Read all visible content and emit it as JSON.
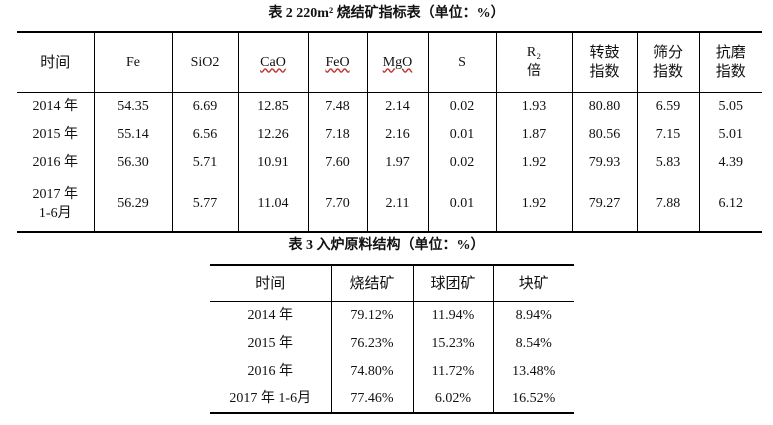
{
  "table2": {
    "caption": "表 2    220m² 烧结矿指标表（单位：%）",
    "headers": [
      "时间",
      "Fe",
      "SiO2",
      "CaO",
      "FeO",
      "MgO",
      "S",
      "R₂",
      "倍",
      "转鼓",
      "指数",
      "筛分",
      "指数",
      "抗磨",
      "指数"
    ],
    "rows": [
      [
        "2014 年",
        "54.35",
        "6.69",
        "12.85",
        "7.48",
        "2.14",
        "0.02",
        "1.93",
        "80.80",
        "6.59",
        "5.05"
      ],
      [
        "2015 年",
        "55.14",
        "6.56",
        "12.26",
        "7.18",
        "2.16",
        "0.01",
        "1.87",
        "80.56",
        "7.15",
        "5.01"
      ],
      [
        "2016 年",
        "56.30",
        "5.71",
        "10.91",
        "7.60",
        "1.97",
        "0.02",
        "1.92",
        "79.93",
        "5.83",
        "4.39"
      ]
    ],
    "last_row": {
      "time_line1": "2017 年",
      "time_line2": "1-6月",
      "values": [
        "56.29",
        "5.77",
        "11.04",
        "7.70",
        "2.11",
        "0.01",
        "1.92",
        "79.27",
        "7.88",
        "6.12"
      ]
    }
  },
  "table3": {
    "caption": "表 3    入炉原料结构（单位：%）",
    "headers": [
      "时间",
      "烧结矿",
      "球团矿",
      "块矿"
    ],
    "rows": [
      [
        "2014 年",
        "79.12%",
        "11.94%",
        "8.94%"
      ],
      [
        "2015 年",
        "76.23%",
        "15.23%",
        "8.54%"
      ],
      [
        "2016 年",
        "74.80%",
        "11.72%",
        "13.48%"
      ],
      [
        "2017 年 1-6月",
        "77.46%",
        "6.02%",
        "16.52%"
      ]
    ]
  }
}
